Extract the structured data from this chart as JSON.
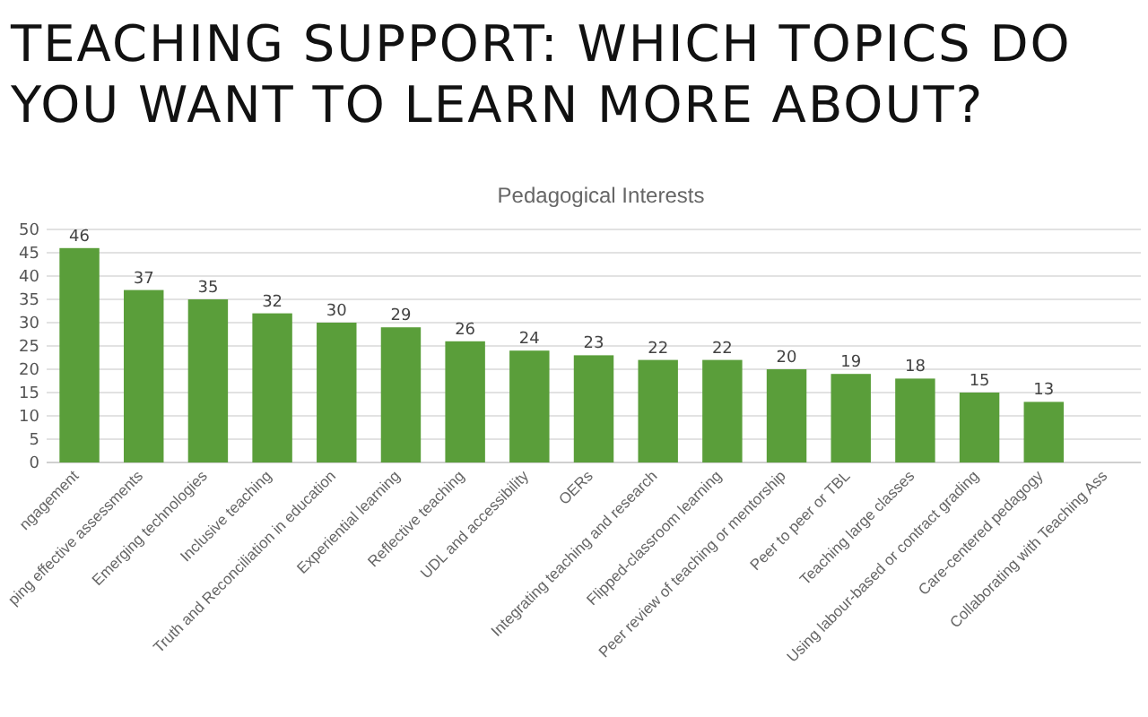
{
  "chart_data": {
    "type": "bar",
    "title": "TEACHING SUPPORT: WHICH TOPICS DO YOU WANT TO LEARN MORE ABOUT?",
    "subtitle": "Pedagogical Interests",
    "categories": [
      "ngagement",
      "ping effective assessments",
      "Emerging technologies",
      "Inclusive teaching",
      "Truth and Reconciliation in education",
      "Experiential learning",
      "Reflective teaching",
      "UDL and accessibility",
      "OERs",
      "Integrating teaching and research",
      "Flipped-classroom learning",
      "Peer review of teaching or mentorship",
      "Peer to peer or TBL",
      "Teaching large classes",
      "Using labour-based or contract grading",
      "Care-centered pedagogy",
      "Collaborating with Teaching Ass"
    ],
    "values": [
      46,
      37,
      35,
      32,
      30,
      29,
      26,
      24,
      23,
      22,
      22,
      20,
      19,
      18,
      15,
      13,
      null
    ],
    "color": "#5a9e3a",
    "ylim": [
      0,
      50
    ],
    "yticks": [
      0,
      5,
      10,
      15,
      20,
      25,
      30,
      35,
      40,
      45,
      50
    ],
    "grid": "y",
    "data_labels": true
  }
}
